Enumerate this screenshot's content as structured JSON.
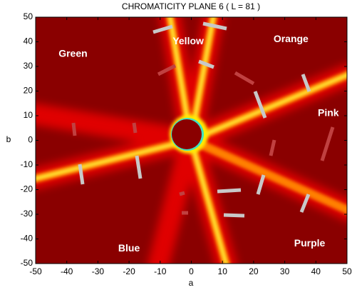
{
  "chart_data": {
    "type": "heatmap",
    "title": "CHROMATICITY PLANE 6  ( L = 81 )",
    "x_label": "a",
    "y_label": "b",
    "xlim": [
      -50,
      50
    ],
    "ylim": [
      -50,
      50
    ],
    "xticks": [
      -50,
      -40,
      -30,
      -20,
      -10,
      0,
      10,
      20,
      30,
      40,
      50
    ],
    "yticks": [
      -50,
      -40,
      -30,
      -20,
      -10,
      0,
      10,
      20,
      30,
      40,
      50
    ],
    "annotations": [
      {
        "text": "Green",
        "x": -38,
        "y": 35
      },
      {
        "text": "Yellow",
        "x": -1,
        "y": 40
      },
      {
        "text": "Orange",
        "x": 32,
        "y": 41
      },
      {
        "text": "Pink",
        "x": 44,
        "y": 11
      },
      {
        "text": "Blue",
        "x": -20,
        "y": -44
      },
      {
        "text": "Purple",
        "x": 38,
        "y": -42
      }
    ]
  }
}
